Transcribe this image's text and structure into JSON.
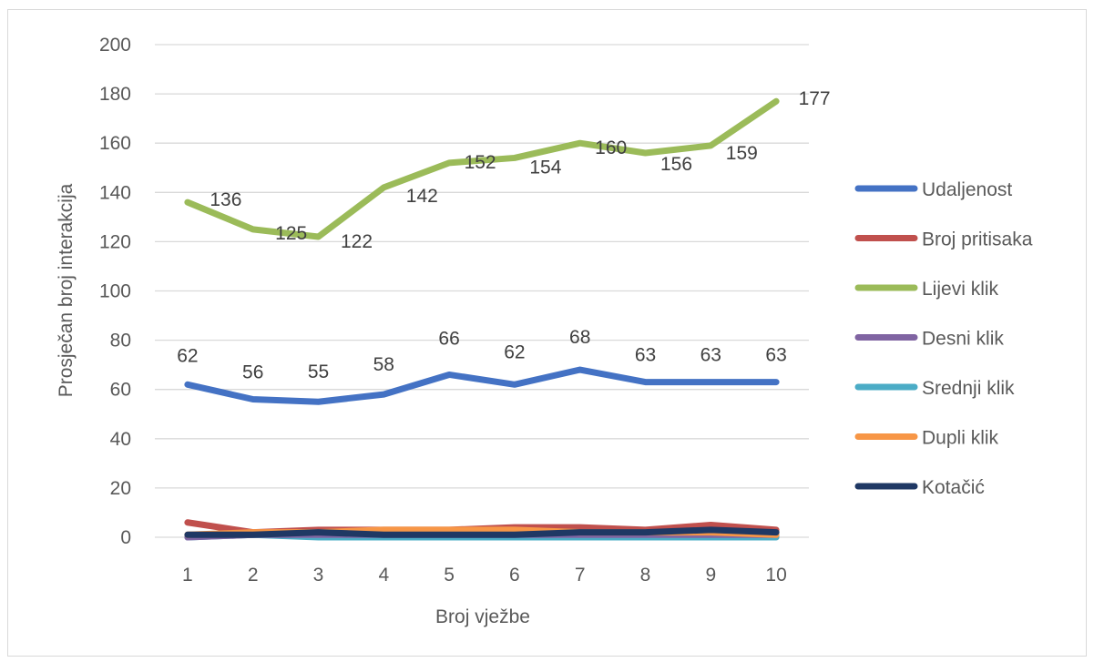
{
  "chart_data": {
    "type": "line",
    "title": "",
    "xlabel": "Broj vježbe",
    "ylabel": "Prosječan broj interakcija",
    "categories": [
      "1",
      "2",
      "3",
      "4",
      "5",
      "6",
      "7",
      "8",
      "9",
      "10"
    ],
    "yticks": [
      "0",
      "20",
      "40",
      "60",
      "80",
      "100",
      "120",
      "140",
      "160",
      "180",
      "200"
    ],
    "ylim": [
      0,
      200
    ],
    "grid": true,
    "legend_position": "right",
    "series": [
      {
        "name": "Udaljenost",
        "color": "#4472c4",
        "values": [
          62,
          56,
          55,
          58,
          66,
          62,
          68,
          63,
          63,
          63
        ],
        "labels": true
      },
      {
        "name": "Broj pritisaka",
        "color": "#c0504d",
        "values": [
          6,
          2,
          3,
          3,
          3,
          4,
          4,
          3,
          5,
          3
        ],
        "labels": false
      },
      {
        "name": "Lijevi klik",
        "color": "#9bbb59",
        "values": [
          136,
          125,
          122,
          142,
          152,
          154,
          160,
          156,
          159,
          177
        ],
        "labels": true
      },
      {
        "name": "Desni klik",
        "color": "#8064a2",
        "values": [
          0,
          1,
          1,
          1,
          1,
          1,
          1,
          1,
          1,
          1
        ],
        "labels": false
      },
      {
        "name": "Srednji klik",
        "color": "#4bacc6",
        "values": [
          0,
          1,
          0,
          0,
          0,
          0,
          0,
          0,
          0,
          0
        ],
        "labels": false
      },
      {
        "name": "Dupli klik",
        "color": "#f79646",
        "values": [
          1,
          2,
          2,
          3,
          3,
          3,
          2,
          2,
          2,
          1
        ],
        "labels": false
      },
      {
        "name": "Kotačić",
        "color": "#1f3864",
        "values": [
          1,
          1,
          2,
          1,
          1,
          1,
          2,
          2,
          3,
          2
        ],
        "labels": false
      }
    ]
  }
}
